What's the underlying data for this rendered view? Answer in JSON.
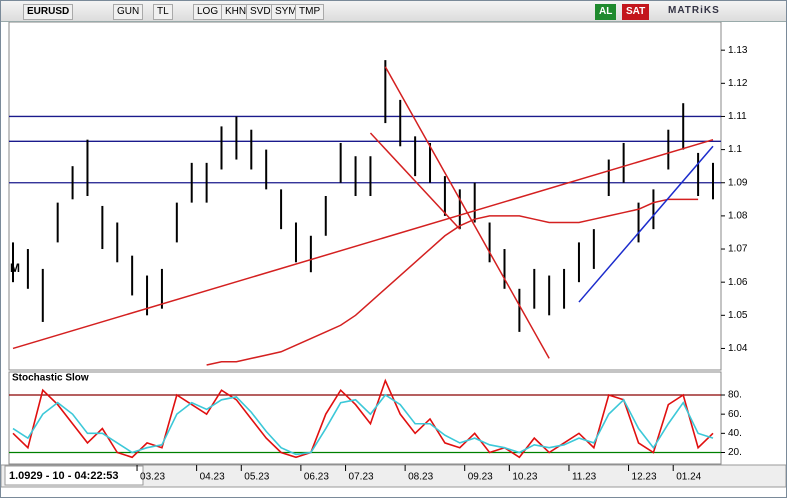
{
  "toolbar": {
    "symbol": "EURUSD",
    "buttons": [
      "GUN",
      "TL",
      "LOG",
      "KHN",
      "SVD",
      "SYM",
      "TMP"
    ],
    "buy": "AL",
    "sell": "SAT",
    "brand": "MATRiKS"
  },
  "status": "1.0929 - 10 - 04:22:53",
  "panel_marker": "M",
  "chart_data": [
    {
      "type": "ohlc",
      "categories": [
        null,
        null,
        null,
        null,
        null,
        null,
        null,
        null,
        null,
        "03.23",
        null,
        null,
        null,
        "04.23",
        null,
        null,
        "05.23",
        null,
        null,
        null,
        "06.23",
        null,
        null,
        "07.23",
        null,
        null,
        null,
        "08.23",
        null,
        null,
        null,
        "09.23",
        null,
        null,
        "10.23",
        null,
        null,
        null,
        "11.23",
        null,
        null,
        null,
        "12.23",
        null,
        null,
        "01.24",
        null,
        null
      ],
      "high": [
        1.072,
        1.07,
        1.064,
        1.084,
        1.095,
        1.103,
        1.083,
        1.078,
        1.068,
        1.062,
        1.064,
        1.084,
        1.096,
        1.096,
        1.107,
        1.11,
        1.106,
        1.1,
        1.088,
        1.078,
        1.074,
        1.086,
        1.102,
        1.098,
        1.098,
        1.127,
        1.115,
        1.104,
        1.102,
        1.092,
        1.088,
        1.09,
        1.078,
        1.07,
        1.058,
        1.064,
        1.062,
        1.064,
        1.072,
        1.076,
        1.097,
        1.102,
        1.084,
        1.088,
        1.106,
        1.114,
        1.099,
        1.096
      ],
      "low": [
        1.06,
        1.058,
        1.048,
        1.072,
        1.085,
        1.086,
        1.07,
        1.066,
        1.056,
        1.05,
        1.052,
        1.072,
        1.084,
        1.084,
        1.094,
        1.097,
        1.094,
        1.088,
        1.076,
        1.066,
        1.063,
        1.074,
        1.09,
        1.086,
        1.086,
        1.108,
        1.101,
        1.092,
        1.09,
        1.08,
        1.076,
        1.078,
        1.066,
        1.058,
        1.045,
        1.052,
        1.05,
        1.052,
        1.06,
        1.064,
        1.086,
        1.09,
        1.072,
        1.076,
        1.094,
        1.1,
        1.086,
        1.085
      ],
      "ma": {
        "color": "#d42020",
        "values": [
          null,
          null,
          null,
          null,
          null,
          null,
          null,
          null,
          null,
          null,
          null,
          null,
          null,
          1.035,
          1.036,
          1.036,
          1.037,
          1.038,
          1.039,
          1.041,
          1.043,
          1.045,
          1.047,
          1.05,
          1.054,
          1.058,
          1.062,
          1.066,
          1.07,
          1.074,
          1.077,
          1.079,
          1.08,
          1.08,
          1.08,
          1.079,
          1.078,
          1.078,
          1.078,
          1.079,
          1.08,
          1.081,
          1.082,
          1.084,
          1.085,
          1.085,
          1.085,
          null
        ]
      },
      "levels": [
        1.11,
        1.1025,
        1.09
      ],
      "level_color": "#1a1a8c",
      "trendlines": [
        {
          "x": [
            0,
            47
          ],
          "y": [
            1.04,
            1.103
          ],
          "color": "#d42020"
        },
        {
          "x": [
            25,
            36
          ],
          "y": [
            1.125,
            1.037
          ],
          "color": "#d42020"
        },
        {
          "x": [
            24,
            30
          ],
          "y": [
            1.105,
            1.076
          ],
          "color": "#d42020"
        },
        {
          "x": [
            38,
            47
          ],
          "y": [
            1.054,
            1.101
          ],
          "color": "#1c2ccc"
        }
      ],
      "bar_color": "#000000",
      "ylim": [
        1.0335,
        1.1385
      ],
      "yticks": [
        1.04,
        1.05,
        1.06,
        1.07,
        1.08,
        1.09,
        1.1,
        1.11,
        1.12,
        1.13
      ]
    },
    {
      "type": "line",
      "title": "Stochastic Slow",
      "series": [
        {
          "color": "#e01010",
          "values": [
            40,
            25,
            85,
            70,
            50,
            30,
            45,
            20,
            15,
            30,
            25,
            80,
            70,
            60,
            85,
            75,
            55,
            35,
            20,
            15,
            20,
            60,
            85,
            70,
            50,
            95,
            60,
            40,
            55,
            30,
            25,
            40,
            20,
            25,
            15,
            35,
            20,
            30,
            40,
            25,
            80,
            75,
            30,
            20,
            70,
            80,
            25,
            40
          ]
        },
        {
          "color": "#3cc8d8",
          "values": [
            45,
            35,
            60,
            72,
            60,
            40,
            40,
            30,
            20,
            25,
            28,
            60,
            72,
            65,
            75,
            78,
            62,
            42,
            25,
            18,
            20,
            45,
            72,
            75,
            60,
            80,
            70,
            50,
            50,
            38,
            30,
            35,
            28,
            25,
            20,
            28,
            25,
            28,
            35,
            30,
            60,
            75,
            45,
            25,
            50,
            72,
            40,
            35
          ]
        }
      ],
      "levels": [
        80,
        20
      ],
      "level_colors": [
        "#8b0000",
        "#008000"
      ],
      "ylim": [
        8,
        104
      ],
      "yticks": [
        {
          "value": 20,
          "label": "20."
        },
        {
          "value": 40,
          "label": "40."
        },
        {
          "value": 60,
          "label": "60."
        },
        {
          "value": 80,
          "label": "80."
        }
      ]
    }
  ]
}
